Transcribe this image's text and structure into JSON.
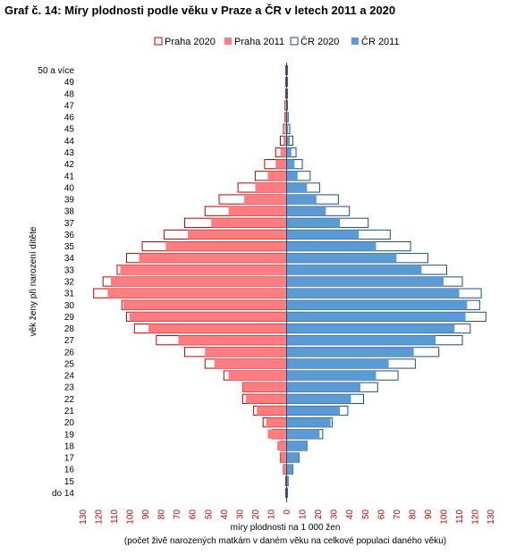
{
  "chart_data": {
    "type": "bar",
    "orientation": "horizontal",
    "layout": "population-pyramid",
    "title": "Graf č. 14: Míry plodnosti podle věku v Praze a ČR v letech 2011 a 2020",
    "ylabel": "věk ženy při narození dítěte",
    "xlabel": "míry plodnosti na 1 000 žen",
    "xlabel_note": "(počet živě narozených matkám v daném věku na celkové populaci daného věku)",
    "xlim": [
      -130,
      130
    ],
    "x_tick_values": [
      -130,
      -120,
      -110,
      -100,
      -90,
      -80,
      -70,
      -60,
      -50,
      -40,
      -30,
      -20,
      -10,
      0,
      10,
      20,
      30,
      40,
      50,
      60,
      70,
      80,
      90,
      100,
      110,
      120,
      130
    ],
    "x_tick_labels": [
      "130",
      "120",
      "110",
      "100",
      "90",
      "80",
      "70",
      "60",
      "50",
      "40",
      "30",
      "20",
      "10",
      "0",
      "10",
      "20",
      "30",
      "40",
      "50",
      "60",
      "70",
      "80",
      "90",
      "100",
      "110",
      "120",
      "130"
    ],
    "grid": false,
    "legend_position": "top",
    "categories": [
      "50 a více",
      "49",
      "48",
      "47",
      "46",
      "45",
      "44",
      "43",
      "42",
      "41",
      "40",
      "39",
      "38",
      "37",
      "36",
      "35",
      "34",
      "33",
      "32",
      "31",
      "30",
      "29",
      "28",
      "27",
      "26",
      "25",
      "24",
      "23",
      "22",
      "21",
      "20",
      "19",
      "18",
      "17",
      "16",
      "15",
      "do 14"
    ],
    "series": [
      {
        "name": "Praha 2020",
        "side": "left",
        "style": "outline",
        "color": "#c00000",
        "values": [
          0.5,
          0.5,
          0.5,
          1,
          1,
          2,
          4,
          7,
          14,
          20,
          31,
          43,
          52,
          65,
          78,
          92,
          102,
          108,
          117,
          123,
          105,
          102,
          97,
          83,
          65,
          52,
          40,
          28,
          28,
          21,
          15,
          9,
          4,
          4,
          2,
          0.5,
          0.5
        ]
      },
      {
        "name": "Praha 2011",
        "side": "left",
        "style": "filled",
        "color": "#ff7c80",
        "values": [
          0,
          0,
          0,
          0,
          0.5,
          1,
          2,
          4,
          7,
          12,
          20,
          27,
          37,
          48,
          63,
          77,
          94,
          106,
          112,
          114,
          104,
          100,
          88,
          69,
          52,
          46,
          37,
          28,
          26,
          19,
          13,
          12,
          6,
          4,
          2,
          0,
          0
        ]
      },
      {
        "name": "ČR 2020",
        "side": "right",
        "style": "outline",
        "color": "#1f4e79",
        "values": [
          0.5,
          0.5,
          0.5,
          0.5,
          1,
          2,
          4,
          6,
          10,
          15,
          21,
          33,
          40,
          52,
          66,
          79,
          90,
          102,
          112,
          124,
          123,
          127,
          117,
          112,
          97,
          82,
          71,
          58,
          49,
          39,
          29,
          23,
          13,
          8,
          4,
          1,
          0.5
        ]
      },
      {
        "name": "ČR 2011",
        "side": "right",
        "style": "filled",
        "color": "#5b9bd5",
        "values": [
          0,
          0,
          0,
          0,
          0.5,
          1,
          2,
          3,
          5,
          7,
          13,
          19,
          25,
          34,
          46,
          57,
          70,
          86,
          100,
          110,
          115,
          114,
          107,
          95,
          81,
          65,
          57,
          47,
          41,
          34,
          28,
          21,
          13,
          8,
          4,
          1,
          0
        ]
      }
    ]
  }
}
